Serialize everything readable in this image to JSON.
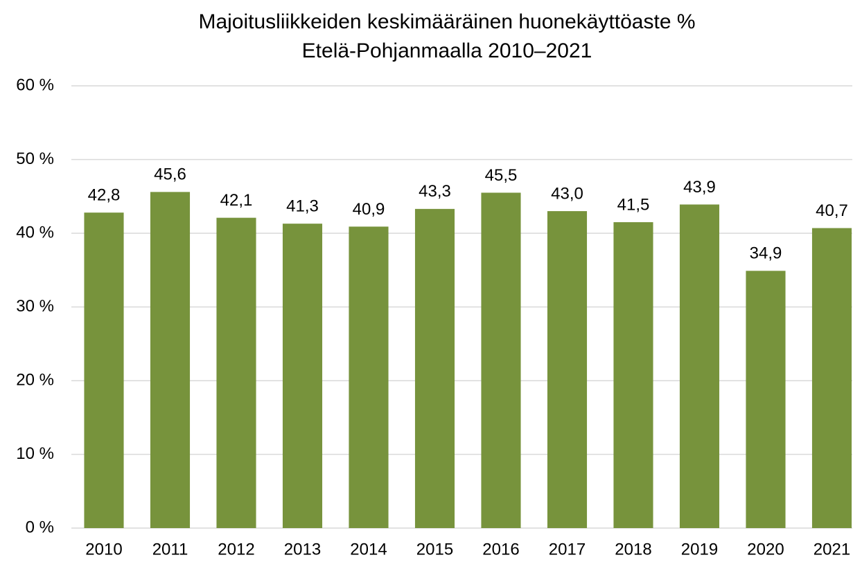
{
  "chart_data": {
    "type": "bar",
    "title": "Majoitusliikkeiden keskimääräinen huonekäyttöaste %",
    "subtitle": "Etelä-Pohjanmaalla 2010–2021",
    "categories": [
      "2010",
      "2011",
      "2012",
      "2013",
      "2014",
      "2015",
      "2016",
      "2017",
      "2018",
      "2019",
      "2020",
      "2021"
    ],
    "values": [
      42.8,
      45.6,
      42.1,
      41.3,
      40.9,
      43.3,
      45.5,
      43.0,
      41.5,
      43.9,
      34.9,
      40.7
    ],
    "value_labels": [
      "42,8",
      "45,6",
      "42,1",
      "41,3",
      "40,9",
      "43,3",
      "45,5",
      "43,0",
      "41,5",
      "43,9",
      "34,9",
      "40,7"
    ],
    "color": "#77933c",
    "ylim": [
      0,
      60
    ],
    "yticks": [
      {
        "value": 0,
        "label": "0 %"
      },
      {
        "value": 10,
        "label": "10 %"
      },
      {
        "value": 20,
        "label": "20 %"
      },
      {
        "value": 30,
        "label": "30 %"
      },
      {
        "value": 40,
        "label": "40 %"
      },
      {
        "value": 50,
        "label": "50 %"
      },
      {
        "value": 60,
        "label": "60 %"
      }
    ],
    "grid": true
  }
}
